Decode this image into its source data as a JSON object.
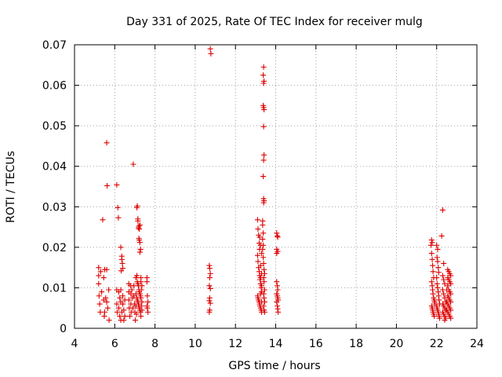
{
  "chart_data": {
    "type": "scatter",
    "title": "Day 331 of 2025, Rate Of TEC Index for receiver mulg",
    "xlabel": "GPS time / hours",
    "ylabel": "ROTI / TECUs",
    "xlim": [
      4,
      24
    ],
    "ylim": [
      0,
      0.07
    ],
    "xticks": [
      4,
      6,
      8,
      10,
      12,
      14,
      16,
      18,
      20,
      22,
      24
    ],
    "xtick_labels": [
      "4",
      "6",
      "8",
      "10",
      "12",
      "14",
      "16",
      "18",
      "20",
      "22",
      "24"
    ],
    "yticks": [
      0,
      0.01,
      0.02,
      0.03,
      0.04,
      0.05,
      0.06,
      0.07
    ],
    "ytick_labels": [
      "0",
      "0.01",
      "0.02",
      "0.03",
      "0.04",
      "0.05",
      "0.06",
      "0.07"
    ],
    "grid": true,
    "marker": "+",
    "marker_color": "#dd0000",
    "series": [
      {
        "name": "ROTI",
        "points": [
          [
            5.2,
            0.015
          ],
          [
            5.2,
            0.013
          ],
          [
            5.2,
            0.011
          ],
          [
            5.22,
            0.008
          ],
          [
            5.25,
            0.006
          ],
          [
            5.28,
            0.004
          ],
          [
            5.3,
            0.014
          ],
          [
            5.35,
            0.009
          ],
          [
            5.4,
            0.0268
          ],
          [
            5.45,
            0.0125
          ],
          [
            5.45,
            0.007
          ],
          [
            5.48,
            0.003
          ],
          [
            5.5,
            0.0145
          ],
          [
            5.5,
            0.004
          ],
          [
            5.55,
            0.0075
          ],
          [
            5.6,
            0.0458
          ],
          [
            5.62,
            0.0352
          ],
          [
            5.6,
            0.0145
          ],
          [
            5.6,
            0.0065
          ],
          [
            5.65,
            0.005
          ],
          [
            5.7,
            0.0095
          ],
          [
            5.72,
            0.002
          ],
          [
            6.1,
            0.0354
          ],
          [
            6.15,
            0.0298
          ],
          [
            6.18,
            0.0273
          ],
          [
            6.1,
            0.0095
          ],
          [
            6.1,
            0.006
          ],
          [
            6.12,
            0.004
          ],
          [
            6.2,
            0.009
          ],
          [
            6.2,
            0.005
          ],
          [
            6.25,
            0.003
          ],
          [
            6.3,
            0.02
          ],
          [
            6.35,
            0.0178
          ],
          [
            6.35,
            0.017
          ],
          [
            6.38,
            0.016
          ],
          [
            6.32,
            0.0142
          ],
          [
            6.4,
            0.0148
          ],
          [
            6.3,
            0.0095
          ],
          [
            6.3,
            0.0065
          ],
          [
            6.35,
            0.004
          ],
          [
            6.4,
            0.008
          ],
          [
            6.4,
            0.006
          ],
          [
            6.45,
            0.0045
          ],
          [
            6.45,
            0.002
          ],
          [
            6.5,
            0.007
          ],
          [
            6.5,
            0.003
          ],
          [
            6.3,
            0.002
          ],
          [
            6.25,
            0.0075
          ],
          [
            6.7,
            0.011
          ],
          [
            6.7,
            0.009
          ],
          [
            6.7,
            0.007
          ],
          [
            6.72,
            0.005
          ],
          [
            6.75,
            0.003
          ],
          [
            6.78,
            0.0105
          ],
          [
            6.8,
            0.0085
          ],
          [
            6.8,
            0.006
          ],
          [
            6.82,
            0.004
          ],
          [
            6.85,
            0.0095
          ],
          [
            6.88,
            0.0075
          ],
          [
            6.9,
            0.005
          ],
          [
            6.92,
            0.0405
          ],
          [
            6.95,
            0.0105
          ],
          [
            6.95,
            0.008
          ],
          [
            6.98,
            0.006
          ],
          [
            7.0,
            0.004
          ],
          [
            7.02,
            0.002
          ],
          [
            7.1,
            0.0298
          ],
          [
            7.12,
            0.0302
          ],
          [
            7.15,
            0.027
          ],
          [
            7.15,
            0.0265
          ],
          [
            7.2,
            0.0252
          ],
          [
            7.22,
            0.0245
          ],
          [
            7.25,
            0.0255
          ],
          [
            7.18,
            0.0248
          ],
          [
            7.2,
            0.0222
          ],
          [
            7.22,
            0.0218
          ],
          [
            7.25,
            0.0212
          ],
          [
            7.28,
            0.0195
          ],
          [
            7.25,
            0.0188
          ],
          [
            7.1,
            0.013
          ],
          [
            7.12,
            0.0115
          ],
          [
            7.15,
            0.011
          ],
          [
            7.18,
            0.0105
          ],
          [
            7.2,
            0.0095
          ],
          [
            7.22,
            0.009
          ],
          [
            7.25,
            0.0085
          ],
          [
            7.28,
            0.008
          ],
          [
            7.1,
            0.0075
          ],
          [
            7.12,
            0.007
          ],
          [
            7.15,
            0.0065
          ],
          [
            7.18,
            0.006
          ],
          [
            7.2,
            0.0055
          ],
          [
            7.22,
            0.005
          ],
          [
            7.25,
            0.0045
          ],
          [
            7.28,
            0.004
          ],
          [
            7.3,
            0.0125
          ],
          [
            7.3,
            0.0115
          ],
          [
            7.32,
            0.0095
          ],
          [
            7.3,
            0.0075
          ],
          [
            7.32,
            0.0055
          ],
          [
            7.3,
            0.003
          ],
          [
            7.35,
            0.0105
          ],
          [
            7.35,
            0.0065
          ],
          [
            7.35,
            0.0045
          ],
          [
            7.05,
            0.0125
          ],
          [
            7.05,
            0.0085
          ],
          [
            7.05,
            0.0055
          ],
          [
            7.08,
            0.0035
          ],
          [
            7.6,
            0.0125
          ],
          [
            7.6,
            0.0115
          ],
          [
            7.62,
            0.008
          ],
          [
            7.65,
            0.0065
          ],
          [
            7.6,
            0.0055
          ],
          [
            7.62,
            0.005
          ],
          [
            7.65,
            0.004
          ],
          [
            10.75,
            0.069
          ],
          [
            10.78,
            0.0678
          ],
          [
            10.7,
            0.0155
          ],
          [
            10.72,
            0.0148
          ],
          [
            10.75,
            0.0135
          ],
          [
            10.72,
            0.0125
          ],
          [
            10.7,
            0.0105
          ],
          [
            10.75,
            0.0098
          ],
          [
            10.72,
            0.0075
          ],
          [
            10.7,
            0.0068
          ],
          [
            10.75,
            0.0062
          ],
          [
            10.72,
            0.0045
          ],
          [
            10.7,
            0.004
          ],
          [
            13.4,
            0.0645
          ],
          [
            13.38,
            0.0625
          ],
          [
            13.42,
            0.061
          ],
          [
            13.4,
            0.0605
          ],
          [
            13.38,
            0.055
          ],
          [
            13.4,
            0.0545
          ],
          [
            13.42,
            0.054
          ],
          [
            13.4,
            0.0498
          ],
          [
            13.42,
            0.0428
          ],
          [
            13.4,
            0.0415
          ],
          [
            13.38,
            0.0375
          ],
          [
            13.4,
            0.032
          ],
          [
            13.42,
            0.0315
          ],
          [
            13.4,
            0.031
          ],
          [
            13.1,
            0.0268
          ],
          [
            13.12,
            0.0245
          ],
          [
            13.15,
            0.023
          ],
          [
            13.18,
            0.021
          ],
          [
            13.2,
            0.0195
          ],
          [
            13.1,
            0.018
          ],
          [
            13.12,
            0.0165
          ],
          [
            13.15,
            0.015
          ],
          [
            13.18,
            0.014
          ],
          [
            13.2,
            0.013
          ],
          [
            13.22,
            0.012
          ],
          [
            13.25,
            0.011
          ],
          [
            13.28,
            0.01
          ],
          [
            13.3,
            0.009
          ],
          [
            13.1,
            0.008
          ],
          [
            13.12,
            0.0075
          ],
          [
            13.15,
            0.007
          ],
          [
            13.18,
            0.0065
          ],
          [
            13.2,
            0.006
          ],
          [
            13.22,
            0.0055
          ],
          [
            13.25,
            0.005
          ],
          [
            13.28,
            0.0045
          ],
          [
            13.3,
            0.004
          ],
          [
            13.35,
            0.0265
          ],
          [
            13.35,
            0.0255
          ],
          [
            13.38,
            0.0235
          ],
          [
            13.35,
            0.022
          ],
          [
            13.38,
            0.0205
          ],
          [
            13.35,
            0.0195
          ],
          [
            13.38,
            0.0175
          ],
          [
            13.4,
            0.016
          ],
          [
            13.42,
            0.0145
          ],
          [
            13.45,
            0.0135
          ],
          [
            13.4,
            0.0125
          ],
          [
            13.42,
            0.0115
          ],
          [
            13.45,
            0.0095
          ],
          [
            13.4,
            0.0085
          ],
          [
            13.42,
            0.0075
          ],
          [
            13.45,
            0.0065
          ],
          [
            13.4,
            0.0055
          ],
          [
            13.42,
            0.0045
          ],
          [
            13.45,
            0.004
          ],
          [
            13.2,
            0.0225
          ],
          [
            13.25,
            0.0205
          ],
          [
            13.3,
            0.0185
          ],
          [
            13.25,
            0.0155
          ],
          [
            13.3,
            0.0135
          ],
          [
            13.25,
            0.0125
          ],
          [
            13.3,
            0.0105
          ],
          [
            13.25,
            0.0085
          ],
          [
            13.3,
            0.0065
          ],
          [
            14.05,
            0.0235
          ],
          [
            14.08,
            0.0228
          ],
          [
            14.1,
            0.0225
          ],
          [
            14.05,
            0.0195
          ],
          [
            14.1,
            0.019
          ],
          [
            14.05,
            0.0185
          ],
          [
            14.05,
            0.0115
          ],
          [
            14.08,
            0.0105
          ],
          [
            14.1,
            0.0095
          ],
          [
            14.05,
            0.0085
          ],
          [
            14.08,
            0.008
          ],
          [
            14.1,
            0.0075
          ],
          [
            14.12,
            0.007
          ],
          [
            14.05,
            0.0065
          ],
          [
            14.08,
            0.0055
          ],
          [
            14.1,
            0.0048
          ],
          [
            14.12,
            0.004
          ],
          [
            21.75,
            0.0218
          ],
          [
            21.78,
            0.0212
          ],
          [
            21.72,
            0.0205
          ],
          [
            21.75,
            0.0185
          ],
          [
            21.78,
            0.017
          ],
          [
            21.8,
            0.0155
          ],
          [
            21.82,
            0.014
          ],
          [
            21.85,
            0.0125
          ],
          [
            21.75,
            0.0115
          ],
          [
            21.78,
            0.0105
          ],
          [
            21.8,
            0.0095
          ],
          [
            21.82,
            0.0085
          ],
          [
            21.85,
            0.0075
          ],
          [
            21.88,
            0.007
          ],
          [
            21.9,
            0.0065
          ],
          [
            21.92,
            0.006
          ],
          [
            21.75,
            0.0055
          ],
          [
            21.78,
            0.005
          ],
          [
            21.8,
            0.0045
          ],
          [
            21.82,
            0.004
          ],
          [
            21.85,
            0.0035
          ],
          [
            21.88,
            0.003
          ],
          [
            22.0,
            0.0205
          ],
          [
            22.05,
            0.0195
          ],
          [
            22.02,
            0.0175
          ],
          [
            22.05,
            0.0165
          ],
          [
            22.08,
            0.015
          ],
          [
            22.1,
            0.0138
          ],
          [
            22.0,
            0.0125
          ],
          [
            22.02,
            0.011
          ],
          [
            22.05,
            0.01
          ],
          [
            22.08,
            0.009
          ],
          [
            22.1,
            0.008
          ],
          [
            22.12,
            0.007
          ],
          [
            22.15,
            0.006
          ],
          [
            22.0,
            0.0055
          ],
          [
            22.02,
            0.005
          ],
          [
            22.05,
            0.0045
          ],
          [
            22.08,
            0.004
          ],
          [
            22.1,
            0.0035
          ],
          [
            22.12,
            0.003
          ],
          [
            22.15,
            0.0025
          ],
          [
            22.3,
            0.0292
          ],
          [
            22.25,
            0.0228
          ],
          [
            22.35,
            0.016
          ],
          [
            22.3,
            0.013
          ],
          [
            22.35,
            0.012
          ],
          [
            22.4,
            0.011
          ],
          [
            22.3,
            0.0095
          ],
          [
            22.35,
            0.0085
          ],
          [
            22.4,
            0.0075
          ],
          [
            22.45,
            0.0065
          ],
          [
            22.3,
            0.006
          ],
          [
            22.35,
            0.0055
          ],
          [
            22.4,
            0.005
          ],
          [
            22.45,
            0.0045
          ],
          [
            22.3,
            0.004
          ],
          [
            22.35,
            0.0035
          ],
          [
            22.4,
            0.003
          ],
          [
            22.45,
            0.0025
          ],
          [
            22.4,
            0.002
          ],
          [
            22.55,
            0.0145
          ],
          [
            22.6,
            0.014
          ],
          [
            22.65,
            0.0135
          ],
          [
            22.7,
            0.013
          ],
          [
            22.55,
            0.0125
          ],
          [
            22.6,
            0.012
          ],
          [
            22.65,
            0.0115
          ],
          [
            22.7,
            0.011
          ],
          [
            22.55,
            0.0105
          ],
          [
            22.6,
            0.0095
          ],
          [
            22.65,
            0.009
          ],
          [
            22.7,
            0.0085
          ],
          [
            22.55,
            0.008
          ],
          [
            22.6,
            0.0075
          ],
          [
            22.65,
            0.007
          ],
          [
            22.7,
            0.0065
          ],
          [
            22.55,
            0.006
          ],
          [
            22.6,
            0.0055
          ],
          [
            22.65,
            0.005
          ],
          [
            22.7,
            0.0045
          ],
          [
            22.55,
            0.004
          ],
          [
            22.6,
            0.0035
          ],
          [
            22.65,
            0.003
          ],
          [
            22.7,
            0.0025
          ],
          [
            22.5,
            0.0095
          ],
          [
            22.5,
            0.0065
          ],
          [
            22.5,
            0.0045
          ]
        ]
      }
    ]
  }
}
